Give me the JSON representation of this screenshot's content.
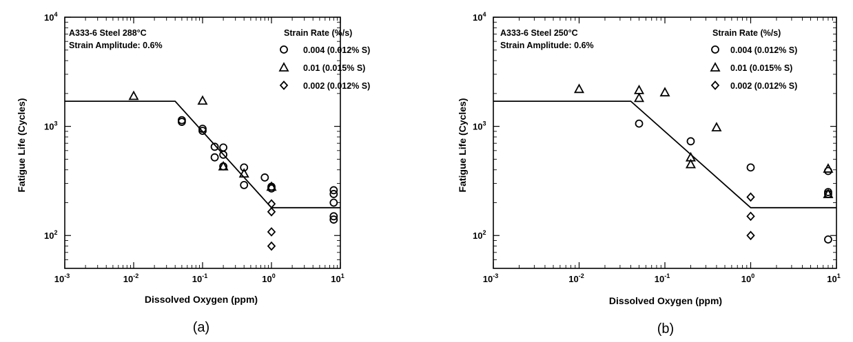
{
  "chart_data": [
    {
      "type": "scatter",
      "panel_label": "(a)",
      "xlabel": "Dissolved Oxygen (ppm)",
      "ylabel": "Fatigue Life (Cycles)",
      "x_scale": "log",
      "y_scale": "log",
      "xlim": [
        0.001,
        10
      ],
      "ylim": [
        50,
        10000
      ],
      "x_ticks": [
        {
          "base": "10",
          "exp": "-3"
        },
        {
          "base": "10",
          "exp": "-2"
        },
        {
          "base": "10",
          "exp": "-1"
        },
        {
          "base": "10",
          "exp": "0"
        },
        {
          "base": "10",
          "exp": "1"
        }
      ],
      "y_ticks": [
        {
          "base": "10",
          "exp": "2"
        },
        {
          "base": "10",
          "exp": "3"
        },
        {
          "base": "10",
          "exp": "4"
        }
      ],
      "grid": false,
      "annotations": [
        "A333-6 Steel 288°C",
        "Strain Amplitude: 0.6%"
      ],
      "legend_title": "Strain Rate (%/s)",
      "legend_position": "top-right",
      "series": [
        {
          "name": "0.004 (0.012% S)",
          "marker": "circle",
          "points": [
            [
              0.05,
              1140
            ],
            [
              0.05,
              1100
            ],
            [
              0.1,
              950
            ],
            [
              0.1,
              910
            ],
            [
              0.15,
              650
            ],
            [
              0.15,
              520
            ],
            [
              0.2,
              640
            ],
            [
              0.2,
              550
            ],
            [
              0.2,
              430
            ],
            [
              0.4,
              420
            ],
            [
              0.4,
              290
            ],
            [
              0.8,
              340
            ],
            [
              1.0,
              280
            ],
            [
              1.0,
              270
            ],
            [
              8,
              260
            ],
            [
              8,
              240
            ],
            [
              8,
              200
            ],
            [
              8,
              150
            ],
            [
              8,
              140
            ]
          ]
        },
        {
          "name": "0.01 (0.015% S)",
          "marker": "triangle",
          "points": [
            [
              0.01,
              1900
            ],
            [
              0.1,
              1720
            ],
            [
              0.2,
              430
            ],
            [
              0.4,
              370
            ],
            [
              1.0,
              280
            ]
          ]
        },
        {
          "name": "0.002 (0.012% S)",
          "marker": "diamond",
          "points": [
            [
              1.0,
              195
            ],
            [
              1.0,
              165
            ],
            [
              1.0,
              108
            ],
            [
              1.0,
              80
            ]
          ]
        }
      ],
      "fit_line": [
        [
          0.001,
          1700
        ],
        [
          0.04,
          1700
        ],
        [
          1.0,
          180
        ],
        [
          10,
          180
        ]
      ]
    },
    {
      "type": "scatter",
      "panel_label": "(b)",
      "xlabel": "Dissolved Oxygen (ppm)",
      "ylabel": "Fatigue Life (Cycles)",
      "x_scale": "log",
      "y_scale": "log",
      "xlim": [
        0.001,
        10
      ],
      "ylim": [
        50,
        10000
      ],
      "x_ticks": [
        {
          "base": "10",
          "exp": "-3"
        },
        {
          "base": "10",
          "exp": "-2"
        },
        {
          "base": "10",
          "exp": "-1"
        },
        {
          "base": "10",
          "exp": "0"
        },
        {
          "base": "10",
          "exp": "1"
        }
      ],
      "y_ticks": [
        {
          "base": "10",
          "exp": "2"
        },
        {
          "base": "10",
          "exp": "3"
        },
        {
          "base": "10",
          "exp": "4"
        }
      ],
      "grid": false,
      "annotations": [
        "A333-6 Steel 250°C",
        "Strain Amplitude: 0.6%"
      ],
      "legend_title": "Strain Rate (%/s)",
      "legend_position": "top-right",
      "series": [
        {
          "name": "0.004 (0.012% S)",
          "marker": "circle",
          "points": [
            [
              0.05,
              1060
            ],
            [
              0.2,
              730
            ],
            [
              1.0,
              420
            ],
            [
              8,
              390
            ],
            [
              8,
              250
            ],
            [
              8,
              240
            ],
            [
              8,
              92
            ]
          ]
        },
        {
          "name": "0.01  (0.015% S)",
          "marker": "triangle",
          "points": [
            [
              0.01,
              2200
            ],
            [
              0.05,
              2150
            ],
            [
              0.05,
              1820
            ],
            [
              0.1,
              2050
            ],
            [
              0.2,
              520
            ],
            [
              0.2,
              450
            ],
            [
              0.4,
              980
            ],
            [
              8,
              410
            ],
            [
              8,
              240
            ]
          ]
        },
        {
          "name": "0.002 (0.012% S)",
          "marker": "diamond",
          "points": [
            [
              1.0,
              225
            ],
            [
              1.0,
              150
            ],
            [
              1.0,
              100
            ]
          ]
        }
      ],
      "fit_line": [
        [
          0.001,
          1700
        ],
        [
          0.04,
          1700
        ],
        [
          1.0,
          180
        ],
        [
          10,
          180
        ]
      ]
    }
  ]
}
